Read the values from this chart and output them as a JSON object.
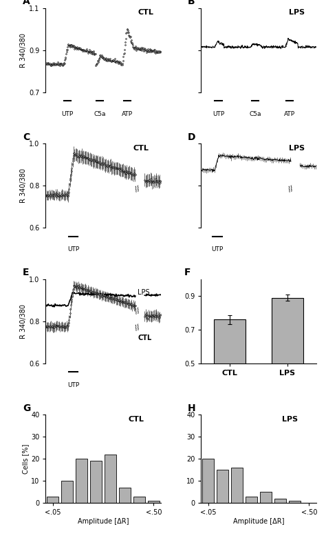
{
  "panel_A": {
    "label": "A",
    "title": "CTL",
    "ylabel": "R 340/380",
    "ylim": [
      0.7,
      1.1
    ],
    "yticks": [
      0.7,
      0.9,
      1.1
    ],
    "stimuli": [
      {
        "name": "UTP",
        "xstart": 0.16,
        "xend": 0.22
      },
      {
        "name": "C5a",
        "xstart": 0.44,
        "xend": 0.5
      },
      {
        "name": "ATP",
        "xstart": 0.68,
        "xend": 0.74
      }
    ]
  },
  "panel_B": {
    "label": "B",
    "title": "LPS",
    "ylim": [
      0.7,
      1.1
    ],
    "yticks": [
      0.7,
      0.9,
      1.1
    ],
    "stimuli": [
      {
        "name": "UTP",
        "xstart": 0.12,
        "xend": 0.18
      },
      {
        "name": "C5a",
        "xstart": 0.44,
        "xend": 0.5
      },
      {
        "name": "ATP",
        "xstart": 0.74,
        "xend": 0.8
      }
    ]
  },
  "panel_C": {
    "label": "C",
    "title": "CTL",
    "ylabel": "R 340/380",
    "ylim": [
      0.6,
      1.0
    ],
    "yticks": [
      0.6,
      0.8,
      1.0
    ],
    "stimuli": [
      {
        "name": "UTP",
        "xstart": 0.2,
        "xend": 0.28
      }
    ]
  },
  "panel_D": {
    "label": "D",
    "title": "LPS",
    "ylim": [
      0.6,
      1.0
    ],
    "yticks": [
      0.6,
      0.8,
      1.0
    ],
    "stimuli": [
      {
        "name": "UTP",
        "xstart": 0.1,
        "xend": 0.18
      }
    ]
  },
  "panel_E": {
    "label": "E",
    "ylabel": "R 340/380",
    "ylim": [
      0.6,
      1.0
    ],
    "yticks": [
      0.6,
      0.8,
      1.0
    ],
    "stimuli": [
      {
        "name": "UTP",
        "xstart": 0.2,
        "xend": 0.28
      }
    ]
  },
  "panel_F": {
    "label": "F",
    "ylim": [
      0.5,
      1.0
    ],
    "yticks": [
      0.5,
      0.7,
      0.9
    ],
    "categories": [
      "CTL",
      "LPS"
    ],
    "values": [
      0.76,
      0.89
    ],
    "errors": [
      0.025,
      0.02
    ],
    "bar_color": "#b0b0b0"
  },
  "panel_G": {
    "label": "G",
    "title": "CTL",
    "xlabel": "Amplitude [ΔR]",
    "ylabel": "Cells [%]",
    "xlabels": [
      "<.05",
      "<.50"
    ],
    "values": [
      3,
      10,
      20,
      19,
      22,
      7,
      3,
      1
    ],
    "bar_color": "#b0b0b0"
  },
  "panel_H": {
    "label": "H",
    "title": "LPS",
    "xlabel": "Amplitude [ΔR]",
    "xlabels": [
      "<.05",
      "<.50"
    ],
    "values": [
      20,
      15,
      16,
      3,
      5,
      2,
      1,
      0
    ],
    "bar_color": "#b0b0b0"
  }
}
